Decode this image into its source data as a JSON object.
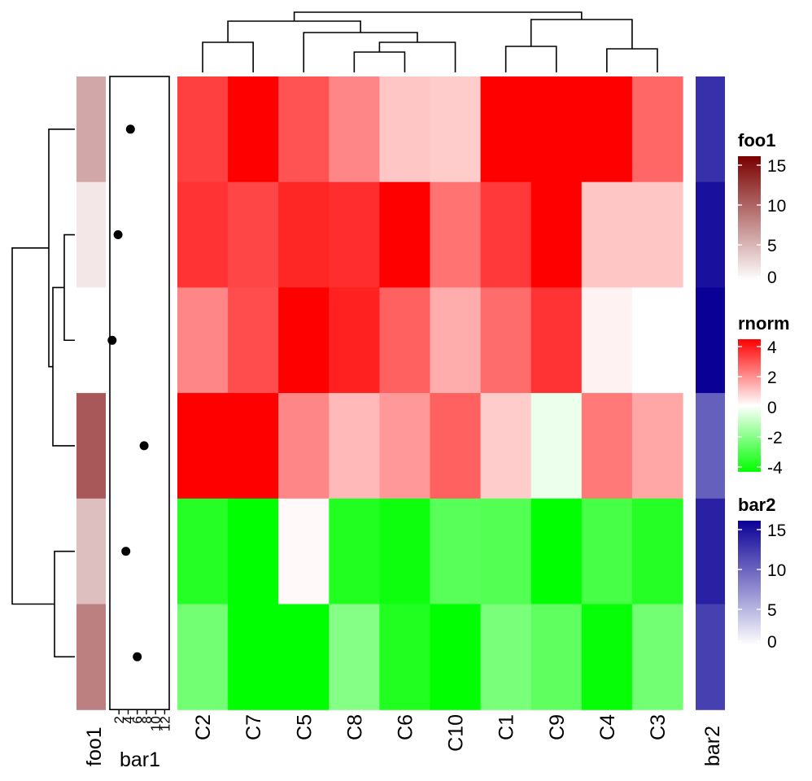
{
  "chart_data": {
    "type": "heatmap",
    "columns": [
      "C2",
      "C7",
      "C5",
      "C8",
      "C6",
      "C10",
      "C1",
      "C9",
      "C4",
      "C3"
    ],
    "rows": 6,
    "matrix": [
      [
        3.0,
        4.3,
        2.7,
        1.9,
        0.9,
        0.8,
        4.3,
        4.3,
        4.3,
        2.4
      ],
      [
        3.2,
        2.9,
        3.4,
        3.3,
        4.1,
        2.2,
        3.1,
        4.1,
        0.9,
        0.9
      ],
      [
        1.9,
        2.8,
        4.0,
        3.5,
        2.5,
        1.3,
        2.3,
        3.2,
        0.2,
        0.0
      ],
      [
        4.3,
        4.3,
        1.9,
        1.1,
        1.6,
        2.5,
        0.8,
        -0.3,
        2.1,
        1.4
      ],
      [
        -3.4,
        -4.4,
        0.1,
        -3.5,
        -3.8,
        -2.6,
        -2.7,
        -4.3,
        -2.9,
        -3.4
      ],
      [
        -2.2,
        -4.5,
        -4.5,
        -1.9,
        -3.5,
        -4.7,
        -2.1,
        -2.5,
        -3.9,
        -2.2
      ]
    ],
    "annotations": {
      "foo1": {
        "name": "foo1",
        "values": [
          5.5,
          1.5,
          0.0,
          10.5,
          4.0,
          8.0
        ]
      },
      "bar1": {
        "name": "bar1",
        "values": [
          4.5,
          1.8,
          0.5,
          7.5,
          3.5,
          6.0
        ],
        "ticks": [
          "2",
          "4",
          "6",
          "8",
          "10",
          "12"
        ],
        "min": 0,
        "max": 13
      },
      "bar2": {
        "name": "bar2",
        "values": [
          13.0,
          15.0,
          16.5,
          10.0,
          14.0,
          12.0
        ]
      }
    },
    "legends": [
      {
        "name": "foo1",
        "ticks": [
          "15",
          "10",
          "5",
          "0"
        ],
        "colors": [
          "#7a0000",
          "#ffffff"
        ]
      },
      {
        "name": "rnorm",
        "ticks": [
          "4",
          "2",
          "0",
          "-2",
          "-4"
        ],
        "colors": [
          "#ff0000",
          "#ffffff",
          "#00ff00"
        ]
      },
      {
        "name": "bar2",
        "ticks": [
          "15",
          "10",
          "5",
          "0"
        ],
        "colors": [
          "#0a0096",
          "#ffffff"
        ]
      }
    ],
    "color_scale": {
      "min": -4,
      "mid": 0,
      "max": 4,
      "low": "#00ff00",
      "mid_color": "#ffffff",
      "high": "#ff0000"
    },
    "foo1_scale": {
      "min": 0,
      "max": 16,
      "low": "#ffffff",
      "high": "#7a0000"
    },
    "bar2_scale": {
      "min": 0,
      "max": 16,
      "low": "#ffffff",
      "high": "#0a0096"
    }
  }
}
